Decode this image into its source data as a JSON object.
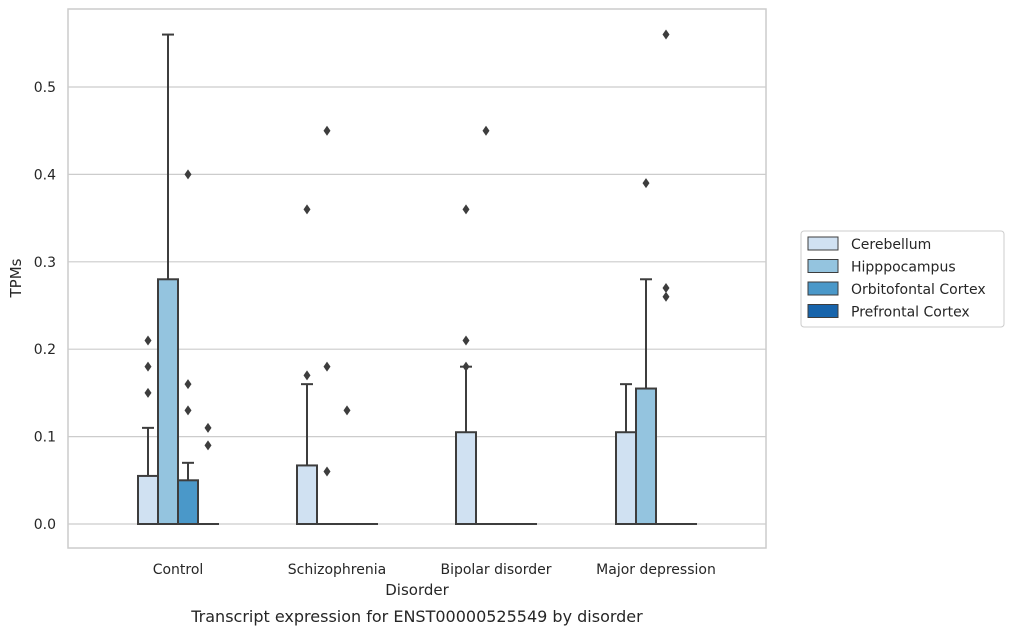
{
  "chart_data": {
    "type": "box",
    "xlabel": "Disorder",
    "ylabel": "TPMs",
    "caption": "Transcript expression for ENST00000525549 by disorder",
    "categories": [
      "Control",
      "Schizophrenia",
      "Bipolar disorder",
      "Major depression"
    ],
    "ylim": [
      -0.028,
      0.59
    ],
    "yticks": [
      "0.0",
      "0.1",
      "0.2",
      "0.3",
      "0.4",
      "0.5"
    ],
    "grid": "horizontal",
    "legend_position": "outside-right",
    "series": [
      {
        "name": "Cerebellum",
        "color": "#d0e1f2",
        "boxes": [
          {
            "q1": 0.0,
            "median": 0.0,
            "q3": 0.055,
            "whisker_low": 0.0,
            "whisker_high": 0.11,
            "outliers": [
              0.15,
              0.18,
              0.21
            ]
          },
          {
            "q1": 0.0,
            "median": 0.0,
            "q3": 0.067,
            "whisker_low": 0.0,
            "whisker_high": 0.16,
            "outliers": [
              0.36,
              0.17
            ]
          },
          {
            "q1": 0.0,
            "median": 0.0,
            "q3": 0.105,
            "whisker_low": 0.0,
            "whisker_high": 0.18,
            "outliers": [
              0.36,
              0.21,
              0.18
            ]
          },
          {
            "q1": 0.0,
            "median": 0.0,
            "q3": 0.105,
            "whisker_low": 0.0,
            "whisker_high": 0.16,
            "outliers": []
          }
        ]
      },
      {
        "name": "Hipppocampus",
        "color": "#94c4df",
        "boxes": [
          {
            "q1": 0.0,
            "median": 0.0,
            "q3": 0.28,
            "whisker_low": 0.0,
            "whisker_high": 0.56,
            "outliers": []
          },
          {
            "q1": 0.0,
            "median": 0.0,
            "q3": 0.0,
            "whisker_low": 0.0,
            "whisker_high": 0.0,
            "outliers": [
              0.45,
              0.18,
              0.06
            ]
          },
          {
            "q1": 0.0,
            "median": 0.0,
            "q3": 0.0,
            "whisker_low": 0.0,
            "whisker_high": 0.0,
            "outliers": [
              0.45
            ]
          },
          {
            "q1": 0.0,
            "median": 0.0,
            "q3": 0.155,
            "whisker_low": 0.0,
            "whisker_high": 0.28,
            "outliers": [
              0.39
            ]
          }
        ]
      },
      {
        "name": "Orbitofontal Cortex",
        "color": "#4a98c9",
        "boxes": [
          {
            "q1": 0.0,
            "median": 0.0,
            "q3": 0.05,
            "whisker_low": 0.0,
            "whisker_high": 0.07,
            "outliers": [
              0.4,
              0.16,
              0.13
            ]
          },
          {
            "q1": 0.0,
            "median": 0.0,
            "q3": 0.0,
            "whisker_low": 0.0,
            "whisker_high": 0.0,
            "outliers": [
              0.13
            ]
          },
          {
            "q1": 0.0,
            "median": 0.0,
            "q3": 0.0,
            "whisker_low": 0.0,
            "whisker_high": 0.0,
            "outliers": []
          },
          {
            "q1": 0.0,
            "median": 0.0,
            "q3": 0.0,
            "whisker_low": 0.0,
            "whisker_high": 0.0,
            "outliers": [
              0.56,
              0.27,
              0.26
            ]
          }
        ]
      },
      {
        "name": "Prefrontal Cortex",
        "color": "#1764ab",
        "boxes": [
          {
            "q1": 0.0,
            "median": 0.0,
            "q3": 0.0,
            "whisker_low": 0.0,
            "whisker_high": 0.0,
            "outliers": [
              0.11,
              0.09
            ]
          },
          {
            "q1": 0.0,
            "median": 0.0,
            "q3": 0.0,
            "whisker_low": 0.0,
            "whisker_high": 0.0,
            "outliers": []
          },
          {
            "q1": 0.0,
            "median": 0.0,
            "q3": 0.0,
            "whisker_low": 0.0,
            "whisker_high": 0.0,
            "outliers": []
          },
          {
            "q1": 0.0,
            "median": 0.0,
            "q3": 0.0,
            "whisker_low": 0.0,
            "whisker_high": 0.0,
            "outliers": []
          }
        ]
      }
    ]
  }
}
